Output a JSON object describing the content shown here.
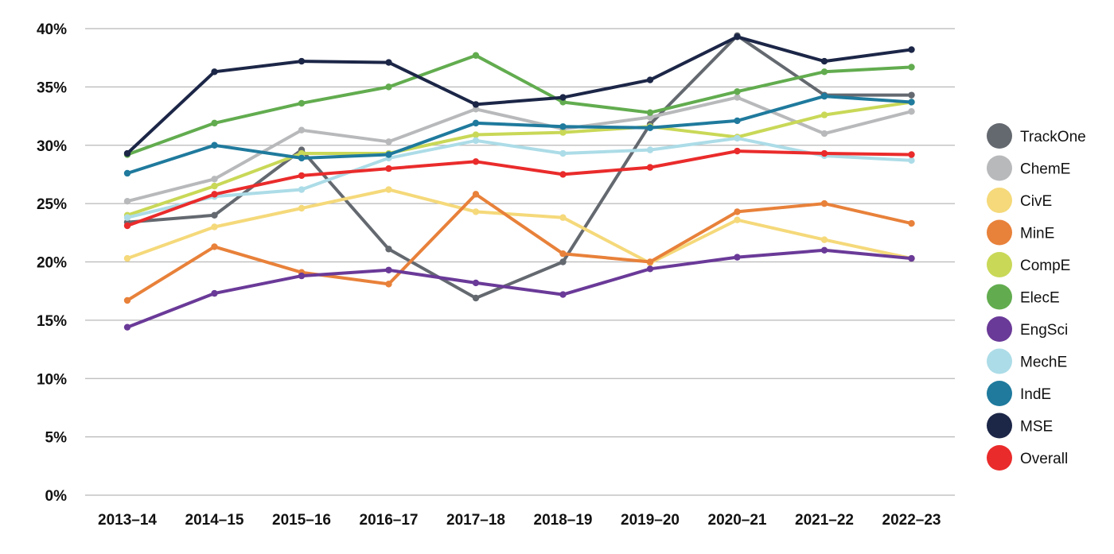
{
  "chart_data": {
    "type": "line",
    "title": "",
    "xlabel": "",
    "ylabel": "",
    "ylim": [
      0,
      40
    ],
    "y_ticks": [
      "0%",
      "5%",
      "10%",
      "15%",
      "20%",
      "25%",
      "30%",
      "35%",
      "40%"
    ],
    "grid": true,
    "legend_position": "right",
    "categories": [
      "2013–14",
      "2014–15",
      "2015–16",
      "2016–17",
      "2017–18",
      "2018–19",
      "2019–20",
      "2020–21",
      "2021–22",
      "2022–23"
    ],
    "series": [
      {
        "name": "TrackOne",
        "color": "#646970",
        "values": [
          23.4,
          24.0,
          29.6,
          21.1,
          16.9,
          20.0,
          31.8,
          39.4,
          34.3,
          34.3
        ]
      },
      {
        "name": "ChemE",
        "color": "#b8b9bb",
        "values": [
          25.2,
          27.1,
          31.3,
          30.3,
          33.1,
          31.4,
          32.4,
          34.1,
          31.0,
          32.9
        ]
      },
      {
        "name": "CivE",
        "color": "#f5d97a",
        "values": [
          20.3,
          23.0,
          24.6,
          26.2,
          24.3,
          23.8,
          19.9,
          23.6,
          21.9,
          20.3
        ]
      },
      {
        "name": "MinE",
        "color": "#e8813a",
        "values": [
          16.7,
          21.3,
          19.1,
          18.1,
          25.8,
          20.7,
          20.0,
          24.3,
          25.0,
          23.3
        ]
      },
      {
        "name": "CompE",
        "color": "#c9d857",
        "values": [
          24.0,
          26.5,
          29.3,
          29.3,
          30.9,
          31.1,
          31.6,
          30.7,
          32.6,
          33.7
        ]
      },
      {
        "name": "ElecE",
        "color": "#62ac4f",
        "values": [
          29.2,
          31.9,
          33.6,
          35.0,
          37.7,
          33.7,
          32.8,
          34.6,
          36.3,
          36.7
        ]
      },
      {
        "name": "EngSci",
        "color": "#6a3a98",
        "values": [
          14.4,
          17.3,
          18.8,
          19.3,
          18.2,
          17.2,
          19.4,
          20.4,
          21.0,
          20.3
        ]
      },
      {
        "name": "MechE",
        "color": "#acdce7",
        "values": [
          23.8,
          25.6,
          26.2,
          28.9,
          30.4,
          29.3,
          29.6,
          30.6,
          29.1,
          28.7
        ]
      },
      {
        "name": "IndE",
        "color": "#1f7a9d",
        "values": [
          27.6,
          30.0,
          28.9,
          29.2,
          31.9,
          31.6,
          31.5,
          32.1,
          34.2,
          33.7
        ]
      },
      {
        "name": "MSE",
        "color": "#1c2647",
        "values": [
          29.3,
          36.3,
          37.2,
          37.1,
          33.5,
          34.1,
          35.6,
          39.3,
          37.2,
          38.2
        ]
      },
      {
        "name": "Overall",
        "color": "#ea2b2b",
        "values": [
          23.1,
          25.8,
          27.4,
          28.0,
          28.6,
          27.5,
          28.1,
          29.5,
          29.3,
          29.2
        ]
      }
    ]
  }
}
